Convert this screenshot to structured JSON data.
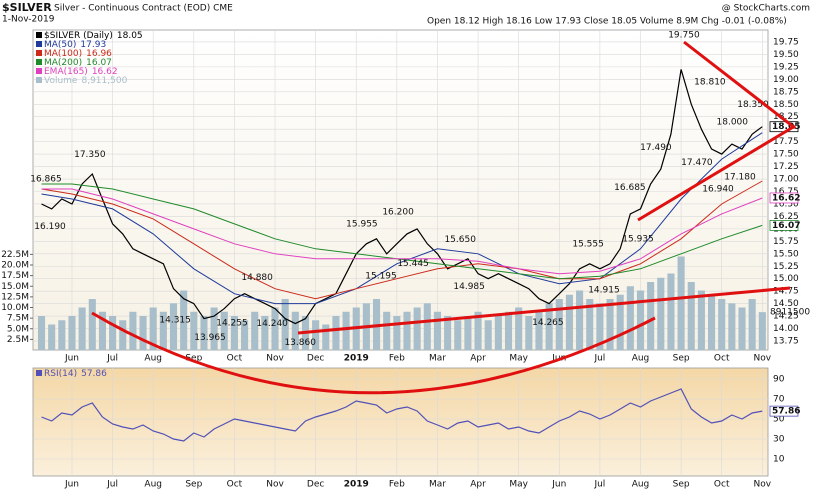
{
  "chart_data": [
    {
      "type": "line",
      "title": "$SILVER",
      "subtitle": "Silver - Continuous Contract (EOD) CME",
      "date": "1-Nov-2019",
      "quote": "Open 18.12 High 18.16 Low 17.93 Close 18.05 Volume 8.9M Chg -0.01 (-0.08%)",
      "source": "@ StockCharts.com",
      "grid": true,
      "xlim": [
        -0.96,
        17.14
      ],
      "xticks": [
        {
          "value": 0,
          "label": "Jun"
        },
        {
          "value": 1,
          "label": "Jul"
        },
        {
          "value": 2,
          "label": "Aug"
        },
        {
          "value": 3,
          "label": "Sep"
        },
        {
          "value": 4,
          "label": "Oct"
        },
        {
          "value": 5,
          "label": "Nov"
        },
        {
          "value": 6,
          "label": "Dec"
        },
        {
          "value": 7,
          "label": "2019"
        },
        {
          "value": 8,
          "label": "Feb"
        },
        {
          "value": 9,
          "label": "Mar"
        },
        {
          "value": 10,
          "label": "Apr"
        },
        {
          "value": 11,
          "label": "May"
        },
        {
          "value": 12,
          "label": "Jun"
        },
        {
          "value": 13,
          "label": "Jul"
        },
        {
          "value": 14,
          "label": "Aug"
        },
        {
          "value": 15,
          "label": "Sep"
        },
        {
          "value": 16,
          "label": "Oct"
        },
        {
          "value": 17,
          "label": "Nov"
        }
      ],
      "ylim": [
        13.57,
        19.99
      ],
      "yticks": [
        13.75,
        {
          "value": 14,
          "label": "14.00"
        },
        14.25,
        {
          "value": 14.5,
          "label": "14.50"
        },
        14.75,
        {
          "value": 15,
          "label": "15.00"
        },
        15.25,
        {
          "value": 15.5,
          "label": "15.50"
        },
        15.75,
        {
          "value": 16,
          "label": "16.00"
        },
        16.25,
        {
          "value": 16.5,
          "label": "16.50"
        },
        16.75,
        {
          "value": 17,
          "label": "17.00"
        },
        17.25,
        {
          "value": 17.5,
          "label": "17.50"
        },
        17.75,
        {
          "value": 18,
          "label": "18.00"
        },
        18.25,
        {
          "value": 18.5,
          "label": "18.50"
        },
        18.75,
        {
          "value": 19,
          "label": "19.00"
        },
        19.25,
        {
          "value": 19.5,
          "label": "19.50"
        },
        19.75
      ],
      "y2lim": [
        0,
        75.3
      ],
      "y2ticks": [
        {
          "value": 2.5,
          "label": "2.5M"
        },
        {
          "value": 5,
          "label": "5.0M"
        },
        {
          "value": 7.5,
          "label": "7.5M"
        },
        {
          "value": 10,
          "label": "10.0M"
        },
        {
          "value": 12.5,
          "label": "12.5M"
        },
        {
          "value": 15,
          "label": "15.0M"
        },
        {
          "value": 17.5,
          "label": "17.5M"
        },
        {
          "value": 20,
          "label": "20.0M"
        },
        {
          "value": 22.5,
          "label": "22.5M"
        }
      ],
      "series": [
        {
          "name": "$SILVER (Daily)",
          "color": "#000000",
          "tag": true,
          "x": [
            -0.75,
            -0.5,
            -0.25,
            0,
            0.25,
            0.5,
            0.75,
            1,
            1.25,
            1.5,
            1.75,
            2,
            2.25,
            2.5,
            2.75,
            3,
            3.25,
            3.5,
            3.75,
            4,
            4.25,
            4.5,
            4.75,
            5,
            5.25,
            5.5,
            5.75,
            6,
            6.25,
            6.5,
            6.75,
            7,
            7.25,
            7.5,
            7.75,
            8,
            8.25,
            8.5,
            8.75,
            9,
            9.25,
            9.5,
            9.75,
            10,
            10.25,
            10.5,
            10.75,
            11,
            11.25,
            11.5,
            11.75,
            12,
            12.25,
            12.5,
            12.75,
            13,
            13.25,
            13.5,
            13.75,
            14,
            14.25,
            14.5,
            14.75,
            15,
            15.25,
            15.5,
            15.75,
            16,
            16.25,
            16.5,
            16.75,
            17
          ],
          "values": [
            16.5,
            16.4,
            16.6,
            16.5,
            16.9,
            17.1,
            16.6,
            16.1,
            15.9,
            15.6,
            15.5,
            15.4,
            15.3,
            14.8,
            14.6,
            14.5,
            14.2,
            14.25,
            14.4,
            14.6,
            14.7,
            14.6,
            14.5,
            14.4,
            14.2,
            14.1,
            14.2,
            14.5,
            14.6,
            14.7,
            15.1,
            15.5,
            15.7,
            15.8,
            15.5,
            15.7,
            15.9,
            16.0,
            15.7,
            15.5,
            15.2,
            15.3,
            15.4,
            15.1,
            15.0,
            15.1,
            15.0,
            14.9,
            14.8,
            14.6,
            14.5,
            14.7,
            14.9,
            15.2,
            15.3,
            15.2,
            15.3,
            15.6,
            16.3,
            16.4,
            16.9,
            17.2,
            17.9,
            19.2,
            18.5,
            18.0,
            17.6,
            17.5,
            17.7,
            17.6,
            17.9,
            18.05
          ]
        },
        {
          "name": "MA(50)",
          "color": "#1f3a9a",
          "x": [
            -0.75,
            0,
            1,
            2,
            3,
            4,
            5,
            6,
            7,
            8,
            9,
            10,
            11,
            12,
            13,
            14,
            15,
            16,
            17
          ],
          "values": [
            16.7,
            16.6,
            16.4,
            15.9,
            15.2,
            14.7,
            14.5,
            14.5,
            14.8,
            15.3,
            15.6,
            15.5,
            15.1,
            14.9,
            15.0,
            15.6,
            16.6,
            17.4,
            17.93
          ]
        },
        {
          "name": "MA(100)",
          "color": "#cc2a1a",
          "x": [
            -0.75,
            0,
            1,
            2,
            3,
            4,
            5,
            6,
            7,
            8,
            9,
            10,
            11,
            12,
            13,
            14,
            15,
            16,
            17
          ],
          "values": [
            16.8,
            16.7,
            16.5,
            16.2,
            15.7,
            15.2,
            14.8,
            14.6,
            14.8,
            15.0,
            15.2,
            15.3,
            15.2,
            15.0,
            15.0,
            15.3,
            15.8,
            16.5,
            16.96
          ]
        },
        {
          "name": "MA(200)",
          "color": "#1f8a2a",
          "tag": true,
          "x": [
            -0.75,
            0,
            1,
            2,
            3,
            4,
            5,
            6,
            7,
            8,
            9,
            10,
            11,
            12,
            13,
            14,
            15,
            16,
            17
          ],
          "values": [
            16.9,
            16.9,
            16.8,
            16.6,
            16.4,
            16.1,
            15.8,
            15.6,
            15.5,
            15.4,
            15.3,
            15.2,
            15.1,
            15.0,
            15.05,
            15.2,
            15.5,
            15.8,
            16.07
          ]
        },
        {
          "name": "EMA(165)",
          "color": "#e040c0",
          "tag": true,
          "x": [
            -0.75,
            0,
            1,
            2,
            3,
            4,
            5,
            6,
            7,
            8,
            9,
            10,
            11,
            12,
            13,
            14,
            15,
            16,
            17
          ],
          "values": [
            16.8,
            16.8,
            16.6,
            16.3,
            16.0,
            15.7,
            15.5,
            15.4,
            15.4,
            15.4,
            15.4,
            15.35,
            15.2,
            15.1,
            15.15,
            15.4,
            15.9,
            16.3,
            16.62
          ]
        },
        {
          "name": "Volume",
          "color": "#a8bfcb",
          "axis": "y2",
          "type": "bar",
          "legend_value": "8,911,500",
          "tag_label": "8911500",
          "x": [
            -0.75,
            -0.5,
            -0.25,
            0,
            0.25,
            0.5,
            0.75,
            1,
            1.25,
            1.5,
            1.75,
            2,
            2.25,
            2.5,
            2.75,
            3,
            3.25,
            3.5,
            3.75,
            4,
            4.25,
            4.5,
            4.75,
            5,
            5.25,
            5.5,
            5.75,
            6,
            6.25,
            6.5,
            6.75,
            7,
            7.25,
            7.5,
            7.75,
            8,
            8.25,
            8.5,
            8.75,
            9,
            9.25,
            9.5,
            9.75,
            10,
            10.25,
            10.5,
            10.75,
            11,
            11.25,
            11.5,
            11.75,
            12,
            12.25,
            12.5,
            12.75,
            13,
            13.25,
            13.5,
            13.75,
            14,
            14.25,
            14.5,
            14.75,
            15,
            15.25,
            15.5,
            15.75,
            16,
            16.25,
            16.5,
            16.75,
            17
          ],
          "values": [
            8,
            6,
            7,
            8,
            10,
            12,
            9,
            8,
            7,
            9,
            8,
            10,
            9,
            11,
            14,
            9,
            8,
            10,
            9,
            8,
            7,
            9,
            8,
            10,
            12,
            9,
            8,
            7,
            6,
            8,
            9,
            10,
            11,
            12,
            9,
            8,
            9,
            10,
            11,
            9,
            8,
            7,
            8,
            9,
            7,
            8,
            9,
            10,
            8,
            9,
            11,
            12,
            13,
            14,
            12,
            11,
            12,
            13,
            15,
            14,
            16,
            17,
            18,
            22,
            16,
            14,
            13,
            12,
            11,
            10,
            12,
            8.9115
          ]
        }
      ],
      "price_labels": [
        {
          "x": -0.64,
          "value": 16.865,
          "label": "16.865"
        },
        {
          "x": -0.54,
          "value": 16.19,
          "label": "16.190"
        },
        {
          "x": 0.44,
          "value": 17.35,
          "label": "17.350"
        },
        {
          "x": 2.54,
          "value": 14.315,
          "label": "14.315"
        },
        {
          "x": 3.4,
          "value": 13.965,
          "label": "13.965"
        },
        {
          "x": 3.94,
          "value": 14.255,
          "label": "14.255"
        },
        {
          "x": 4.56,
          "value": 14.88,
          "label": "14.880"
        },
        {
          "x": 4.93,
          "value": 14.24,
          "label": "14.240"
        },
        {
          "x": 5.62,
          "value": 13.86,
          "label": "13.860"
        },
        {
          "x": 7.14,
          "value": 15.955,
          "label": "15.955"
        },
        {
          "x": 7.61,
          "value": 15.195,
          "label": "15.195"
        },
        {
          "x": 8.03,
          "value": 16.2,
          "label": "16.200"
        },
        {
          "x": 8.4,
          "value": 15.445,
          "label": "15.445"
        },
        {
          "x": 9.56,
          "value": 15.65,
          "label": "15.650"
        },
        {
          "x": 9.78,
          "value": 14.985,
          "label": "14.985"
        },
        {
          "x": 11.72,
          "value": 14.265,
          "label": "14.265"
        },
        {
          "x": 12.71,
          "value": 15.555,
          "label": "15.555"
        },
        {
          "x": 13.1,
          "value": 14.915,
          "label": "14.915"
        },
        {
          "x": 13.74,
          "value": 16.685,
          "label": "16.685"
        },
        {
          "x": 13.94,
          "value": 15.935,
          "label": "15.935"
        },
        {
          "x": 14.38,
          "value": 17.49,
          "label": "17.490"
        },
        {
          "x": 15.07,
          "value": 19.75,
          "label": "19.750"
        },
        {
          "x": 15.39,
          "value": 17.47,
          "label": "17.470"
        },
        {
          "x": 15.71,
          "value": 18.81,
          "label": "18.810"
        },
        {
          "x": 15.91,
          "value": 16.94,
          "label": "16.940"
        },
        {
          "x": 16.26,
          "value": 18.0,
          "label": "18.000"
        },
        {
          "x": 16.45,
          "value": 17.18,
          "label": "17.180"
        },
        {
          "x": 16.77,
          "value": 18.35,
          "label": "18.350"
        }
      ]
    },
    {
      "type": "line",
      "grid": true,
      "xlim": [
        -0.96,
        17.14
      ],
      "xticks": [
        {
          "value": 0,
          "label": "Jun"
        },
        {
          "value": 1,
          "label": "Jul"
        },
        {
          "value": 2,
          "label": "Aug"
        },
        {
          "value": 3,
          "label": "Sep"
        },
        {
          "value": 4,
          "label": "Oct"
        },
        {
          "value": 5,
          "label": "Nov"
        },
        {
          "value": 6,
          "label": "Dec"
        },
        {
          "value": 7,
          "label": "2019"
        },
        {
          "value": 8,
          "label": "Feb"
        },
        {
          "value": 9,
          "label": "Mar"
        },
        {
          "value": 10,
          "label": "Apr"
        },
        {
          "value": 11,
          "label": "May"
        },
        {
          "value": 12,
          "label": "Jun"
        },
        {
          "value": 13,
          "label": "Jul"
        },
        {
          "value": 14,
          "label": "Aug"
        },
        {
          "value": 15,
          "label": "Sep"
        },
        {
          "value": 16,
          "label": "Oct"
        },
        {
          "value": 17,
          "label": "Nov"
        }
      ],
      "ylim": [
        -7,
        101
      ],
      "yticks": [
        10,
        30,
        50,
        70,
        90
      ],
      "series": [
        {
          "name": "RSI(14)",
          "color": "#5050b8",
          "tag": true,
          "x": [
            -0.75,
            -0.5,
            -0.25,
            0,
            0.25,
            0.5,
            0.75,
            1,
            1.25,
            1.5,
            1.75,
            2,
            2.25,
            2.5,
            2.75,
            3,
            3.25,
            3.5,
            3.75,
            4,
            4.25,
            4.5,
            4.75,
            5,
            5.25,
            5.5,
            5.75,
            6,
            6.25,
            6.5,
            6.75,
            7,
            7.25,
            7.5,
            7.75,
            8,
            8.25,
            8.5,
            8.75,
            9,
            9.25,
            9.5,
            9.75,
            10,
            10.25,
            10.5,
            10.75,
            11,
            11.25,
            11.5,
            11.75,
            12,
            12.25,
            12.5,
            12.75,
            13,
            13.25,
            13.5,
            13.75,
            14,
            14.25,
            14.5,
            14.75,
            15,
            15.25,
            15.5,
            15.75,
            16,
            16.25,
            16.5,
            16.75,
            17
          ],
          "values": [
            52,
            48,
            56,
            54,
            62,
            66,
            52,
            45,
            42,
            40,
            44,
            38,
            35,
            30,
            28,
            36,
            32,
            40,
            45,
            50,
            48,
            46,
            44,
            42,
            40,
            38,
            48,
            52,
            55,
            58,
            62,
            68,
            66,
            64,
            56,
            60,
            62,
            58,
            48,
            44,
            40,
            46,
            48,
            42,
            44,
            46,
            40,
            42,
            38,
            36,
            42,
            48,
            52,
            58,
            55,
            50,
            54,
            60,
            66,
            62,
            68,
            72,
            76,
            80,
            60,
            52,
            46,
            48,
            54,
            50,
            56,
            57.86
          ]
        }
      ]
    }
  ]
}
